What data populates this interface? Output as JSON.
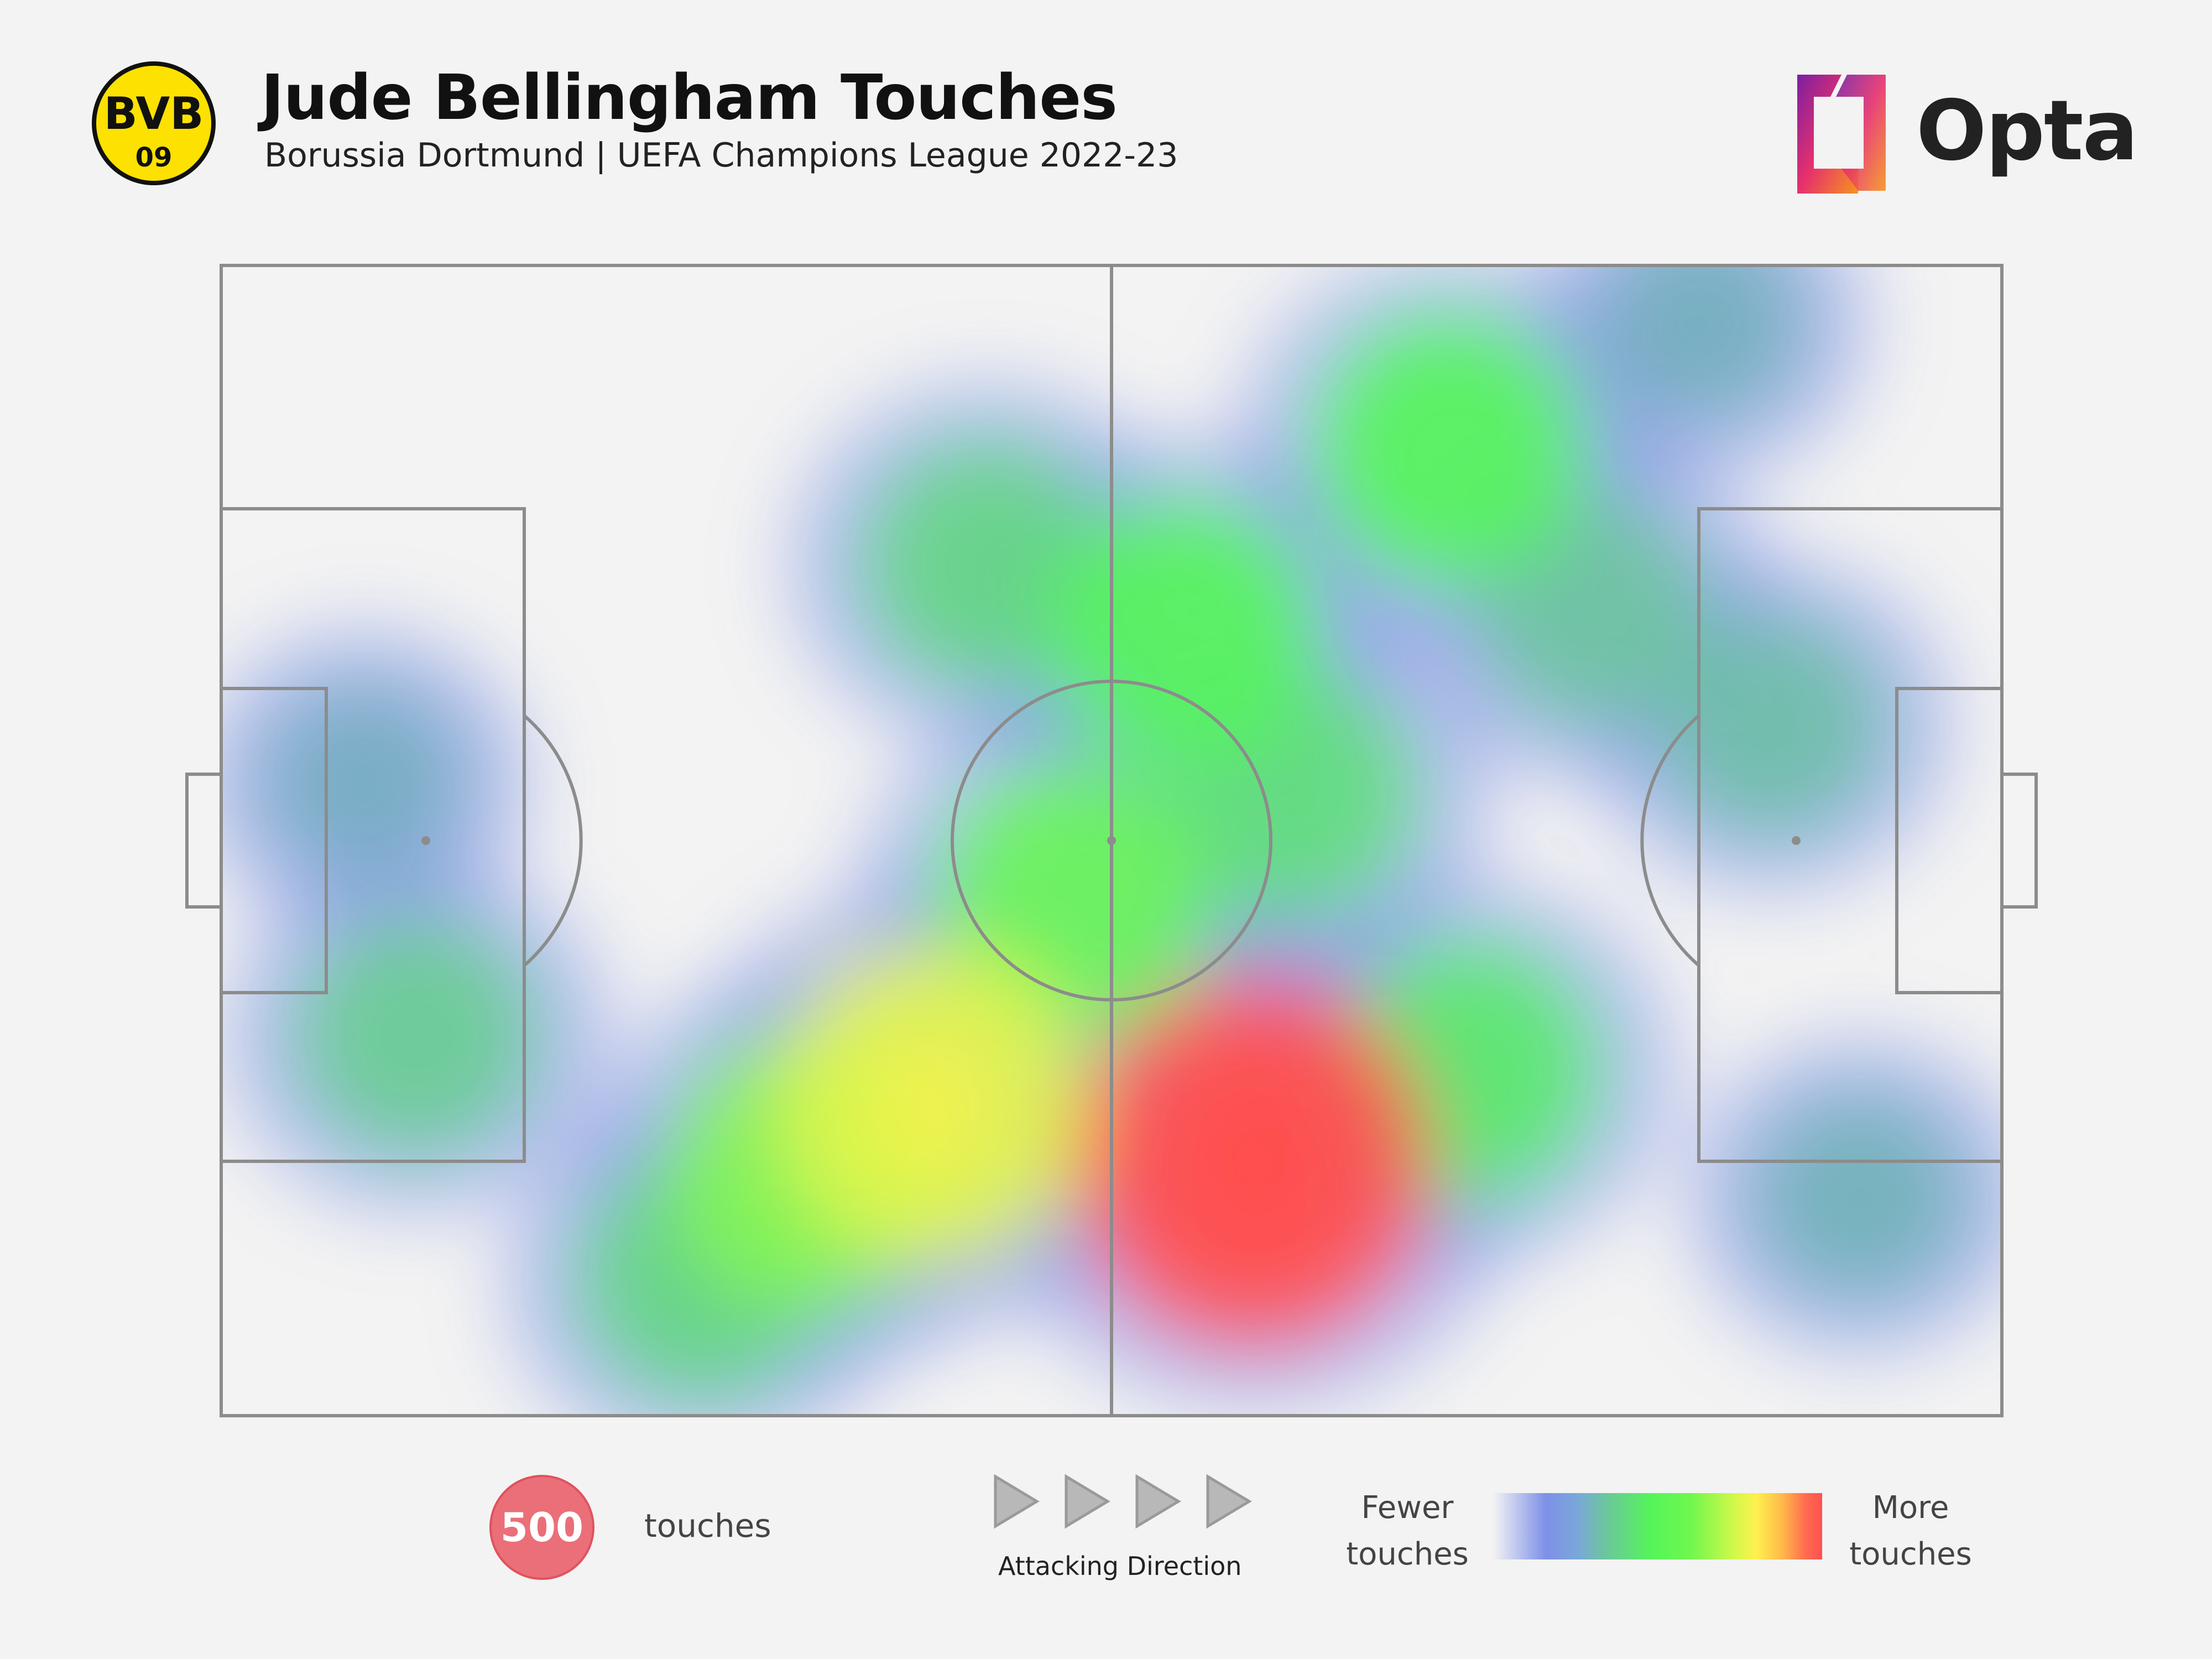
{
  "header": {
    "title": "Jude Bellingham Touches",
    "subtitle": "Borussia Dortmund | UEFA Champions League 2022-23",
    "crest": {
      "text_top": "BVB",
      "text_bottom": "09",
      "fill": "#fde100",
      "ink": "#111111"
    },
    "brand": {
      "name": "Opta",
      "gradient": [
        "#7a1fa2",
        "#e6306d",
        "#f7931e"
      ]
    }
  },
  "colors": {
    "pitch_lines": "#8c8c8c",
    "low": "#7d8fe6",
    "mid": "#55f55a",
    "high": "#ff5050"
  },
  "chart_data": {
    "type": "heatmap",
    "title": "Jude Bellingham Touches",
    "subtitle": "Borussia Dortmund | UEFA Champions League 2022-23",
    "attacking_direction": "left-to-right",
    "pitch_dims": [
      100,
      100
    ],
    "note_units": "Opta pitch coordinates, x 0-100 own goal to opponent goal, y 0-100 bottom to top",
    "hotspots": [
      {
        "x": 58,
        "y": 22,
        "intensity": 1.0
      },
      {
        "x": 40,
        "y": 27,
        "intensity": 0.78
      },
      {
        "x": 33,
        "y": 21,
        "intensity": 0.62
      },
      {
        "x": 48,
        "y": 45,
        "intensity": 0.58
      },
      {
        "x": 54,
        "y": 68,
        "intensity": 0.55
      },
      {
        "x": 69,
        "y": 84,
        "intensity": 0.55
      },
      {
        "x": 60,
        "y": 54,
        "intensity": 0.45
      },
      {
        "x": 70,
        "y": 30,
        "intensity": 0.5
      },
      {
        "x": 43,
        "y": 74,
        "intensity": 0.42
      },
      {
        "x": 27,
        "y": 12,
        "intensity": 0.42
      },
      {
        "x": 11,
        "y": 33,
        "intensity": 0.38
      },
      {
        "x": 87,
        "y": 60,
        "intensity": 0.3
      },
      {
        "x": 77,
        "y": 70,
        "intensity": 0.34
      },
      {
        "x": 92,
        "y": 19,
        "intensity": 0.22
      },
      {
        "x": 8,
        "y": 55,
        "intensity": 0.18
      },
      {
        "x": 83,
        "y": 95,
        "intensity": 0.2
      }
    ],
    "legend": {
      "bubble_value": "500",
      "bubble_label": "touches",
      "direction_label": "Attacking Direction",
      "scale_low": "Fewer touches",
      "scale_high": "More touches"
    }
  }
}
